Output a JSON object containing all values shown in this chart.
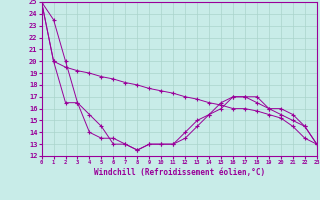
{
  "xlabel": "Windchill (Refroidissement éolien,°C)",
  "xlim": [
    0,
    23
  ],
  "ylim": [
    12,
    25
  ],
  "xticks": [
    0,
    1,
    2,
    3,
    4,
    5,
    6,
    7,
    8,
    9,
    10,
    11,
    12,
    13,
    14,
    15,
    16,
    17,
    18,
    19,
    20,
    21,
    22,
    23
  ],
  "yticks": [
    12,
    13,
    14,
    15,
    16,
    17,
    18,
    19,
    20,
    21,
    22,
    23,
    24,
    25
  ],
  "bg_color": "#c8ece8",
  "line_color": "#990099",
  "grid_color": "#aad4cc",
  "curve1_x": [
    0,
    1,
    2,
    3,
    4,
    5,
    6,
    7,
    8,
    9,
    10,
    11,
    12,
    13,
    14,
    15,
    16,
    17,
    18,
    19,
    20,
    21,
    22,
    23
  ],
  "curve1_y": [
    25,
    23.5,
    20.0,
    16.5,
    15.5,
    14.5,
    13.0,
    13.0,
    12.5,
    13.0,
    13.0,
    13.0,
    14.0,
    15.0,
    15.5,
    16.0,
    17.0,
    17.0,
    16.5,
    16.0,
    15.5,
    15.0,
    14.5,
    13.0
  ],
  "curve2_x": [
    0,
    1,
    2,
    3,
    4,
    5,
    6,
    7,
    8,
    9,
    10,
    11,
    12,
    13,
    14,
    15,
    16,
    17,
    18,
    19,
    20,
    21,
    22,
    23
  ],
  "curve2_y": [
    25,
    20.0,
    19.5,
    19.2,
    19.0,
    18.7,
    18.5,
    18.2,
    18.0,
    17.7,
    17.5,
    17.3,
    17.0,
    16.8,
    16.5,
    16.3,
    16.0,
    16.0,
    15.8,
    15.5,
    15.2,
    14.5,
    13.5,
    13.0
  ],
  "curve3_x": [
    0,
    1,
    2,
    3,
    4,
    5,
    6,
    7,
    8,
    9,
    10,
    11,
    12,
    13,
    14,
    15,
    16,
    17,
    18,
    19,
    20,
    21,
    22,
    23
  ],
  "curve3_y": [
    25,
    20.0,
    16.5,
    16.5,
    14.0,
    13.5,
    13.5,
    13.0,
    12.5,
    13.0,
    13.0,
    13.0,
    13.5,
    14.5,
    15.5,
    16.5,
    17.0,
    17.0,
    17.0,
    16.0,
    16.0,
    15.5,
    14.5,
    13.0
  ]
}
